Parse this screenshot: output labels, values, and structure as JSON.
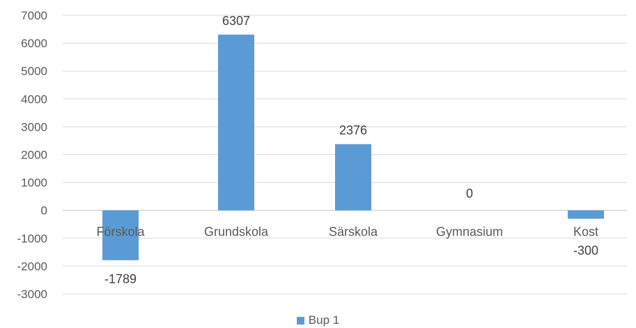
{
  "chart_data": {
    "type": "bar",
    "categories": [
      "Förskola",
      "Grundskola",
      "Särskola",
      "Gymnasium",
      "Kost"
    ],
    "series": [
      {
        "name": "Bup 1",
        "values": [
          -1789,
          6307,
          2376,
          0,
          -300
        ]
      }
    ],
    "data_labels": [
      "-1789",
      "6307",
      "2376",
      "0",
      "-300"
    ],
    "ylim": [
      -3000,
      7000
    ],
    "y_ticks": [
      7000,
      6000,
      5000,
      4000,
      3000,
      2000,
      1000,
      0,
      -1000,
      -2000,
      -3000
    ],
    "grid": true,
    "legend_position": "bottom",
    "colors": {
      "bar": "#5B9BD5",
      "grid": "#D9D9D9",
      "axis": "#BFBFBF"
    }
  }
}
